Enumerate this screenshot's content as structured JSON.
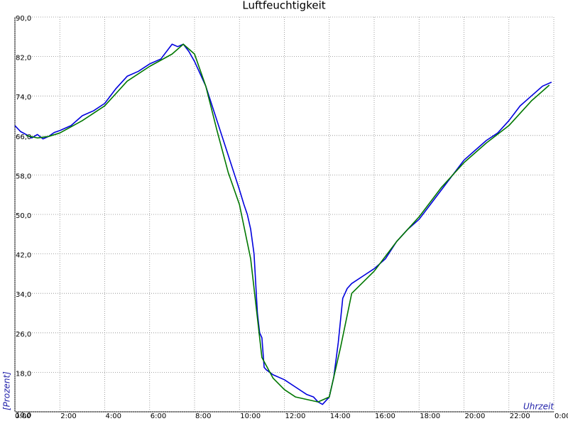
{
  "chart_data": {
    "type": "line",
    "title": "Luftfeuchtigkeit",
    "y_label": "[Prozent]",
    "x_label": "Uhrzeit",
    "xlim": [
      0,
      24
    ],
    "ylim": [
      10,
      90
    ],
    "grid": true,
    "xticks": [
      {
        "value": 0,
        "label": "0:00"
      },
      {
        "value": 2,
        "label": "2:00"
      },
      {
        "value": 4,
        "label": "4:00"
      },
      {
        "value": 6,
        "label": "6:00"
      },
      {
        "value": 8,
        "label": "8:00"
      },
      {
        "value": 10,
        "label": "10:00"
      },
      {
        "value": 12,
        "label": "12:00"
      },
      {
        "value": 14,
        "label": "14:00"
      },
      {
        "value": 16,
        "label": "16:00"
      },
      {
        "value": 18,
        "label": "18:00"
      },
      {
        "value": 20,
        "label": "20:00"
      },
      {
        "value": 22,
        "label": "22:00"
      },
      {
        "value": 24,
        "label": "0:00"
      }
    ],
    "yticks": [
      {
        "value": 10,
        "label": "10,0"
      },
      {
        "value": 18,
        "label": "18,0"
      },
      {
        "value": 26,
        "label": "26,0"
      },
      {
        "value": 34,
        "label": "34,0"
      },
      {
        "value": 42,
        "label": "42,0"
      },
      {
        "value": 50,
        "label": "50,0"
      },
      {
        "value": 58,
        "label": "58,0"
      },
      {
        "value": 66,
        "label": "66,0"
      },
      {
        "value": 74,
        "label": "74,0"
      },
      {
        "value": 82,
        "label": "82,0"
      },
      {
        "value": 90,
        "label": "90,0"
      }
    ],
    "series": [
      {
        "color": "#0000dd",
        "x": [
          0,
          0.25,
          0.5,
          0.75,
          1,
          1.25,
          1.5,
          1.75,
          2,
          2.5,
          3,
          3.5,
          4,
          4.5,
          5,
          5.5,
          6,
          6.5,
          7,
          7.25,
          7.5,
          7.75,
          8,
          8.5,
          9,
          9.5,
          10,
          10.2,
          10.35,
          10.5,
          10.65,
          10.8,
          10.9,
          11,
          11.1,
          11.2,
          11.5,
          12,
          12.5,
          13,
          13.3,
          13.5,
          13.7,
          14,
          14.2,
          14.4,
          14.6,
          14.8,
          15,
          15.5,
          16,
          16.5,
          17,
          17.5,
          18,
          18.5,
          19,
          19.5,
          20,
          20.5,
          21,
          21.5,
          22,
          22.5,
          23,
          23.5,
          23.9
        ],
        "values": [
          68,
          66.8,
          66.2,
          65.5,
          66.2,
          65.3,
          65.8,
          66.6,
          67,
          68,
          70,
          71,
          72.5,
          75.5,
          78,
          79,
          80.5,
          81.5,
          84.5,
          84,
          84.5,
          83,
          81,
          76,
          69,
          62,
          55,
          52,
          50,
          47,
          42,
          30,
          26,
          25,
          19,
          18.5,
          17.5,
          16.5,
          15,
          13.5,
          13,
          12,
          11.5,
          13,
          17,
          24,
          33,
          35,
          36,
          37.5,
          39,
          41,
          44.5,
          47,
          49,
          52,
          55,
          58,
          61,
          63,
          65,
          66.5,
          69,
          72,
          74,
          76,
          76.8
        ]
      },
      {
        "color": "#007700",
        "x": [
          0.5,
          1,
          1.5,
          2,
          3,
          4,
          5,
          6,
          7,
          7.5,
          8,
          8.5,
          9,
          9.5,
          10,
          10.5,
          11,
          11.5,
          12,
          12.5,
          13,
          13.5,
          14,
          14.5,
          15,
          16,
          17,
          18,
          19,
          20,
          21,
          22,
          23,
          23.8
        ],
        "values": [
          66,
          65.5,
          65.8,
          66.5,
          69,
          72,
          77,
          80,
          82.5,
          84.5,
          82.5,
          76,
          67,
          58.5,
          52,
          41,
          21,
          16.8,
          14.5,
          13,
          12.5,
          12,
          13,
          23,
          34,
          38.5,
          44.5,
          49.5,
          55.5,
          60.5,
          64.5,
          68,
          73,
          76.2
        ]
      }
    ]
  }
}
